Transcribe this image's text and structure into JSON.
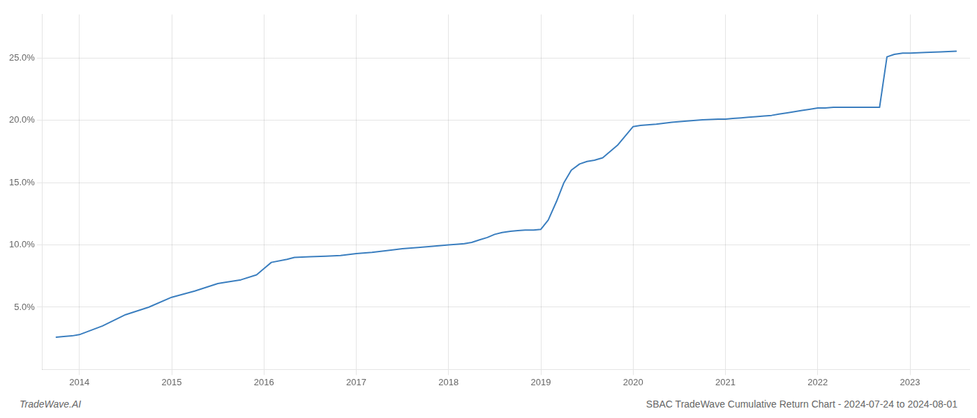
{
  "chart_data": {
    "type": "line",
    "annotations": [
      "TradeWave.AI",
      "SBAC TradeWave Cumulative Return Chart - 2024-07-24 to 2024-08-01"
    ],
    "x": [
      2013.75,
      2013.83,
      2013.92,
      2014.0,
      2014.25,
      2014.5,
      2014.75,
      2015.0,
      2015.25,
      2015.5,
      2015.58,
      2015.75,
      2015.92,
      2016.0,
      2016.08,
      2016.25,
      2016.33,
      2016.5,
      2016.67,
      2016.83,
      2017.0,
      2017.17,
      2017.33,
      2017.5,
      2017.67,
      2017.83,
      2018.0,
      2018.08,
      2018.17,
      2018.25,
      2018.33,
      2018.42,
      2018.5,
      2018.58,
      2018.67,
      2018.75,
      2018.83,
      2018.92,
      2019.0,
      2019.08,
      2019.17,
      2019.25,
      2019.33,
      2019.42,
      2019.5,
      2019.58,
      2019.67,
      2019.75,
      2019.83,
      2020.0,
      2020.08,
      2020.25,
      2020.42,
      2020.58,
      2020.75,
      2020.92,
      2021.0,
      2021.08,
      2021.17,
      2021.25,
      2021.33,
      2021.42,
      2021.5,
      2021.58,
      2021.67,
      2021.75,
      2021.83,
      2021.92,
      2022.0,
      2022.08,
      2022.17,
      2022.25,
      2022.33,
      2022.42,
      2022.5,
      2022.58,
      2022.67,
      2022.75,
      2022.83,
      2022.92,
      2023.0,
      2023.17,
      2023.33,
      2023.5
    ],
    "values": [
      2.6,
      2.65,
      2.7,
      2.8,
      3.5,
      4.4,
      5.0,
      5.8,
      6.3,
      6.9,
      7.0,
      7.2,
      7.6,
      8.1,
      8.6,
      8.85,
      9.0,
      9.05,
      9.1,
      9.15,
      9.3,
      9.4,
      9.55,
      9.7,
      9.8,
      9.9,
      10.0,
      10.05,
      10.1,
      10.2,
      10.4,
      10.6,
      10.85,
      11.0,
      11.1,
      11.15,
      11.2,
      11.2,
      11.25,
      12.0,
      13.5,
      15.0,
      16.0,
      16.5,
      16.7,
      16.8,
      17.0,
      17.5,
      18.0,
      19.5,
      19.6,
      19.7,
      19.85,
      19.95,
      20.05,
      20.1,
      20.1,
      20.15,
      20.2,
      20.25,
      20.3,
      20.35,
      20.4,
      20.5,
      20.6,
      20.7,
      20.8,
      20.9,
      21.0,
      21.0,
      21.05,
      21.05,
      21.05,
      21.05,
      21.05,
      21.05,
      21.05,
      25.1,
      25.3,
      25.4,
      25.4,
      25.45,
      25.5,
      25.55
    ],
    "color": "#3a7ebf",
    "xlim": [
      2013.6,
      2023.65
    ],
    "ylim": [
      0,
      28.5
    ],
    "xticks": [
      2014,
      2015,
      2016,
      2017,
      2018,
      2019,
      2020,
      2021,
      2022,
      2023
    ],
    "yticks": [
      {
        "value": 5.0,
        "label": "5.0%"
      },
      {
        "value": 10.0,
        "label": "10.0%"
      },
      {
        "value": 15.0,
        "label": "15.0%"
      },
      {
        "value": 20.0,
        "label": "20.0%"
      },
      {
        "value": 25.0,
        "label": "25.0%"
      }
    ],
    "grid": true
  }
}
